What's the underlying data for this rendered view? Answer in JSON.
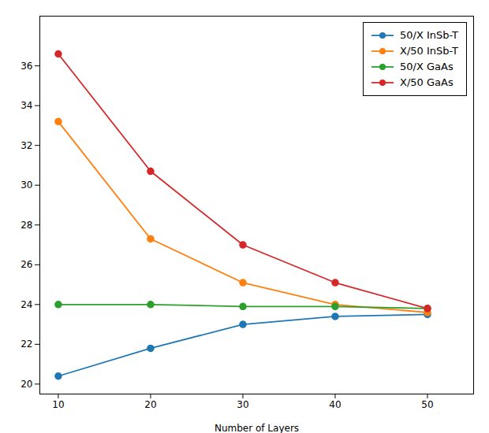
{
  "chart_data": {
    "type": "line",
    "xlabel": "Number of Layers",
    "x": [
      10,
      20,
      30,
      40,
      50
    ],
    "series": [
      {
        "name": "50/X InSb-T",
        "color": "#1f77b4",
        "values": [
          20.4,
          21.8,
          23.0,
          23.4,
          23.5
        ]
      },
      {
        "name": "X/50 InSb-T",
        "color": "#ff7f0e",
        "values": [
          33.2,
          27.3,
          25.1,
          24.0,
          23.6
        ]
      },
      {
        "name": "50/X GaAs",
        "color": "#2ca02c",
        "values": [
          24.0,
          24.0,
          23.9,
          23.9,
          23.8
        ]
      },
      {
        "name": "X/50 GaAs",
        "color": "#d62728",
        "values": [
          36.6,
          30.7,
          27.0,
          25.1,
          23.8
        ]
      }
    ],
    "marker": "circle",
    "xlim": [
      8,
      55
    ],
    "ylim": [
      19.5,
      38.5
    ],
    "xticks": [
      10,
      20,
      30,
      40,
      50
    ],
    "yticks": [
      20,
      22,
      24,
      26,
      28,
      30,
      32,
      34,
      36
    ],
    "legend": "upper right",
    "grid": false
  }
}
